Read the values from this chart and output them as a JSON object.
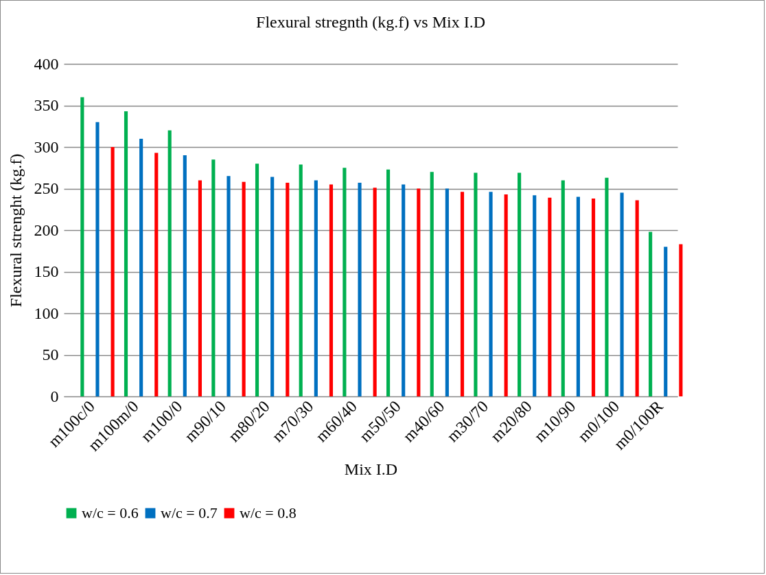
{
  "chart_data": {
    "type": "bar",
    "title": "Flexural stregnth (kg.f) vs Mix I.D",
    "xlabel": "Mix I.D",
    "ylabel": "Flexural strenght (kg.f)",
    "categories": [
      "m100c/0",
      "m100m/0",
      "m100/0",
      "m90/10",
      "m80/20",
      "m70/30",
      "m60/40",
      "m50/50",
      "m40/60",
      "m30/70",
      "m20/80",
      "m10/90",
      "m0/100",
      "m0/100R"
    ],
    "series": [
      {
        "name": "w/c = 0.6",
        "color": "#00b050",
        "values": [
          360,
          343,
          320,
          285,
          280,
          279,
          275,
          273,
          270,
          269,
          269,
          260,
          263,
          198
        ]
      },
      {
        "name": "w/c = 0.7",
        "color": "#0070c0",
        "values": [
          330,
          310,
          290,
          265,
          264,
          260,
          257,
          255,
          250,
          246,
          242,
          240,
          245,
          180
        ]
      },
      {
        "name": "w/c = 0.8",
        "color": "#ff0000",
        "values": [
          300,
          293,
          260,
          258,
          257,
          255,
          251,
          250,
          246,
          243,
          239,
          238,
          236,
          183
        ]
      }
    ],
    "ylim": [
      0,
      400
    ],
    "yticks": [
      0,
      50,
      100,
      150,
      200,
      250,
      300,
      350,
      400
    ],
    "grid": "y",
    "legend": "bottom"
  }
}
